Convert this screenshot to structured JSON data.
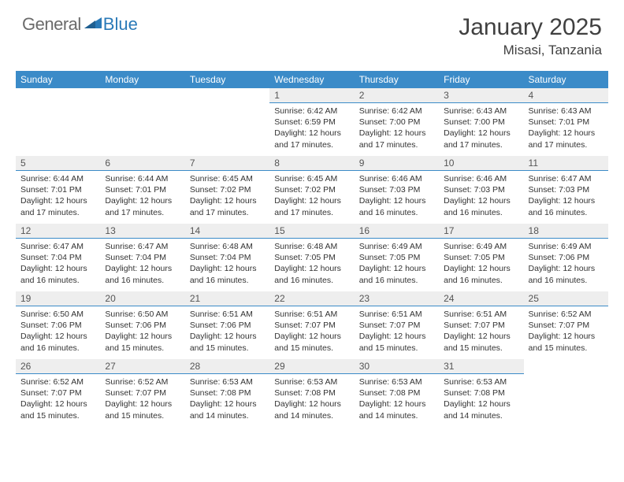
{
  "logo": {
    "text_gray": "General",
    "text_blue": "Blue"
  },
  "header": {
    "month_year": "January 2025",
    "location": "Misasi, Tanzania"
  },
  "style": {
    "header_bg": "#3b8bc8",
    "header_text": "#ffffff",
    "daynum_bg": "#eeeeee",
    "daynum_border": "#3b8bc8",
    "body_text": "#333333",
    "page_bg": "#ffffff",
    "logo_gray": "#6b6b6b",
    "logo_blue": "#2a7ab8",
    "title_fontsize": 30,
    "location_fontsize": 17,
    "dayhead_fontsize": 12,
    "cell_fontsize": 10.5
  },
  "day_headers": [
    "Sunday",
    "Monday",
    "Tuesday",
    "Wednesday",
    "Thursday",
    "Friday",
    "Saturday"
  ],
  "weeks": [
    [
      null,
      null,
      null,
      {
        "n": "1",
        "sr": "6:42 AM",
        "ss": "6:59 PM",
        "dl": "12 hours and 17 minutes."
      },
      {
        "n": "2",
        "sr": "6:42 AM",
        "ss": "7:00 PM",
        "dl": "12 hours and 17 minutes."
      },
      {
        "n": "3",
        "sr": "6:43 AM",
        "ss": "7:00 PM",
        "dl": "12 hours and 17 minutes."
      },
      {
        "n": "4",
        "sr": "6:43 AM",
        "ss": "7:01 PM",
        "dl": "12 hours and 17 minutes."
      }
    ],
    [
      {
        "n": "5",
        "sr": "6:44 AM",
        "ss": "7:01 PM",
        "dl": "12 hours and 17 minutes."
      },
      {
        "n": "6",
        "sr": "6:44 AM",
        "ss": "7:01 PM",
        "dl": "12 hours and 17 minutes."
      },
      {
        "n": "7",
        "sr": "6:45 AM",
        "ss": "7:02 PM",
        "dl": "12 hours and 17 minutes."
      },
      {
        "n": "8",
        "sr": "6:45 AM",
        "ss": "7:02 PM",
        "dl": "12 hours and 17 minutes."
      },
      {
        "n": "9",
        "sr": "6:46 AM",
        "ss": "7:03 PM",
        "dl": "12 hours and 16 minutes."
      },
      {
        "n": "10",
        "sr": "6:46 AM",
        "ss": "7:03 PM",
        "dl": "12 hours and 16 minutes."
      },
      {
        "n": "11",
        "sr": "6:47 AM",
        "ss": "7:03 PM",
        "dl": "12 hours and 16 minutes."
      }
    ],
    [
      {
        "n": "12",
        "sr": "6:47 AM",
        "ss": "7:04 PM",
        "dl": "12 hours and 16 minutes."
      },
      {
        "n": "13",
        "sr": "6:47 AM",
        "ss": "7:04 PM",
        "dl": "12 hours and 16 minutes."
      },
      {
        "n": "14",
        "sr": "6:48 AM",
        "ss": "7:04 PM",
        "dl": "12 hours and 16 minutes."
      },
      {
        "n": "15",
        "sr": "6:48 AM",
        "ss": "7:05 PM",
        "dl": "12 hours and 16 minutes."
      },
      {
        "n": "16",
        "sr": "6:49 AM",
        "ss": "7:05 PM",
        "dl": "12 hours and 16 minutes."
      },
      {
        "n": "17",
        "sr": "6:49 AM",
        "ss": "7:05 PM",
        "dl": "12 hours and 16 minutes."
      },
      {
        "n": "18",
        "sr": "6:49 AM",
        "ss": "7:06 PM",
        "dl": "12 hours and 16 minutes."
      }
    ],
    [
      {
        "n": "19",
        "sr": "6:50 AM",
        "ss": "7:06 PM",
        "dl": "12 hours and 16 minutes."
      },
      {
        "n": "20",
        "sr": "6:50 AM",
        "ss": "7:06 PM",
        "dl": "12 hours and 15 minutes."
      },
      {
        "n": "21",
        "sr": "6:51 AM",
        "ss": "7:06 PM",
        "dl": "12 hours and 15 minutes."
      },
      {
        "n": "22",
        "sr": "6:51 AM",
        "ss": "7:07 PM",
        "dl": "12 hours and 15 minutes."
      },
      {
        "n": "23",
        "sr": "6:51 AM",
        "ss": "7:07 PM",
        "dl": "12 hours and 15 minutes."
      },
      {
        "n": "24",
        "sr": "6:51 AM",
        "ss": "7:07 PM",
        "dl": "12 hours and 15 minutes."
      },
      {
        "n": "25",
        "sr": "6:52 AM",
        "ss": "7:07 PM",
        "dl": "12 hours and 15 minutes."
      }
    ],
    [
      {
        "n": "26",
        "sr": "6:52 AM",
        "ss": "7:07 PM",
        "dl": "12 hours and 15 minutes."
      },
      {
        "n": "27",
        "sr": "6:52 AM",
        "ss": "7:07 PM",
        "dl": "12 hours and 15 minutes."
      },
      {
        "n": "28",
        "sr": "6:53 AM",
        "ss": "7:08 PM",
        "dl": "12 hours and 14 minutes."
      },
      {
        "n": "29",
        "sr": "6:53 AM",
        "ss": "7:08 PM",
        "dl": "12 hours and 14 minutes."
      },
      {
        "n": "30",
        "sr": "6:53 AM",
        "ss": "7:08 PM",
        "dl": "12 hours and 14 minutes."
      },
      {
        "n": "31",
        "sr": "6:53 AM",
        "ss": "7:08 PM",
        "dl": "12 hours and 14 minutes."
      },
      null
    ]
  ],
  "labels": {
    "sunrise": "Sunrise:",
    "sunset": "Sunset:",
    "daylight": "Daylight:"
  }
}
